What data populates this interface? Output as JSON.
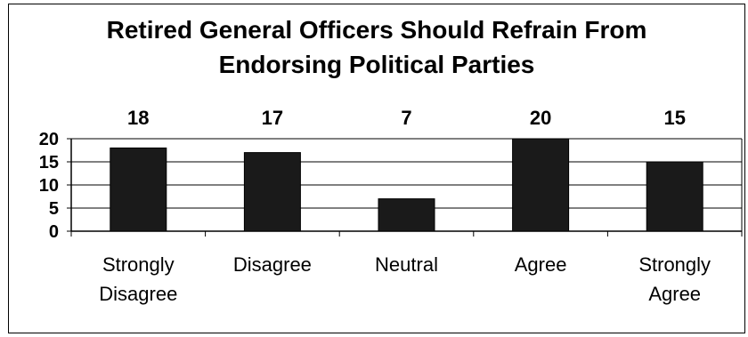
{
  "chart_data": {
    "type": "bar",
    "title": "Retired General Officers Should Refrain From Endorsing Political Parties",
    "title_lines": [
      "Retired General Officers Should Refrain From",
      "Endorsing Political Parties"
    ],
    "categories": [
      [
        "Strongly",
        "Disagree"
      ],
      [
        "Disagree"
      ],
      [
        "Neutral"
      ],
      [
        "Agree"
      ],
      [
        "Strongly",
        "Agree"
      ]
    ],
    "values": [
      18,
      17,
      7,
      20,
      15
    ],
    "data_labels": [
      "18",
      "17",
      "7",
      "20",
      "15"
    ],
    "yticks": [
      "0",
      "5",
      "10",
      "15",
      "20"
    ],
    "ylim": [
      0,
      20
    ],
    "grid": true,
    "xlabel": "",
    "ylabel": "",
    "bar_color": "#1a1a1a"
  }
}
